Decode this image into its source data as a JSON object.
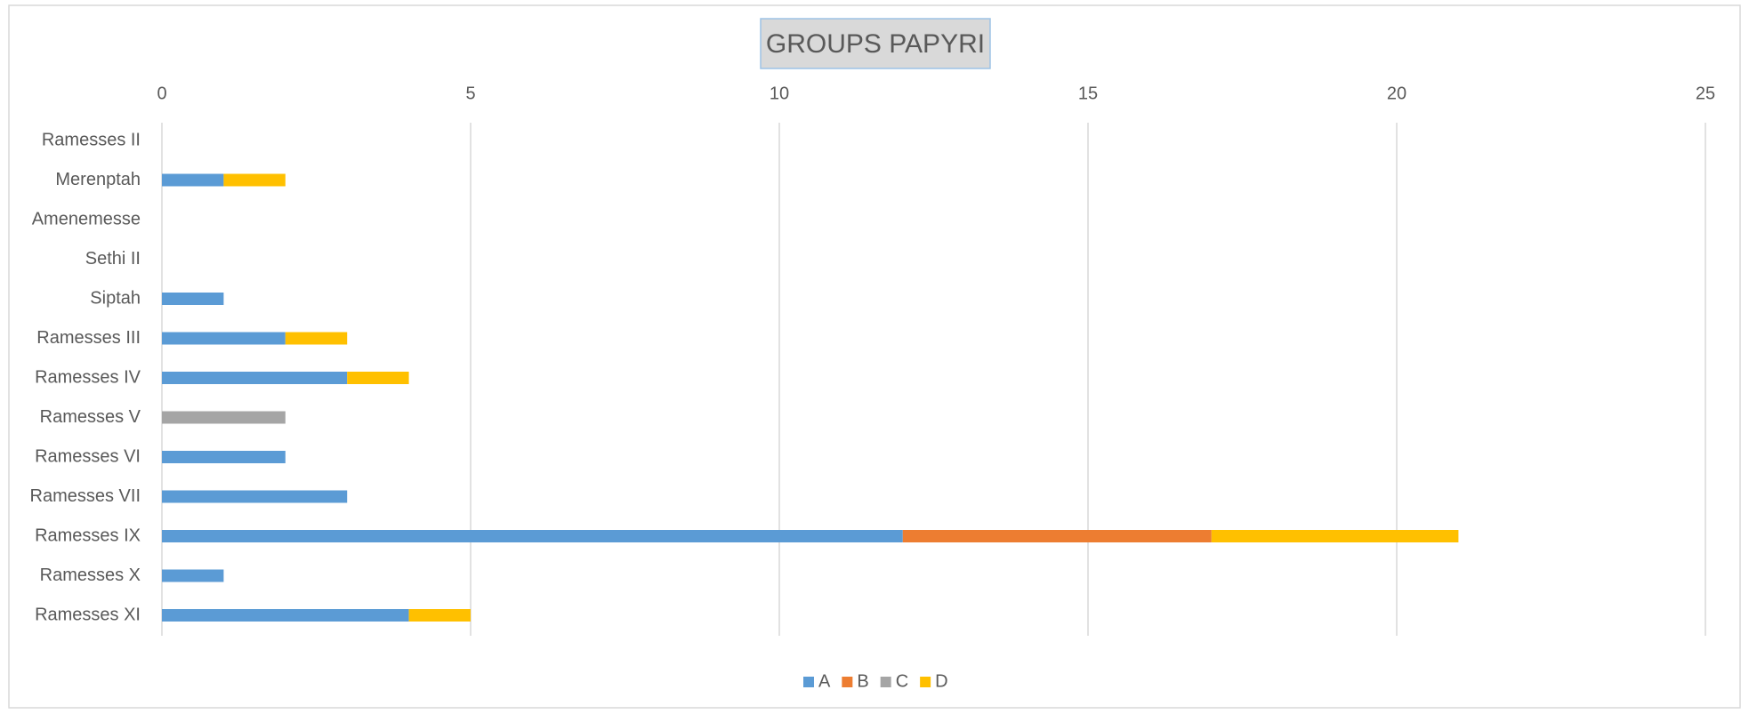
{
  "chart_data": {
    "type": "bar",
    "orientation": "horizontal",
    "stacked": true,
    "title": "GROUPS PAPYRI",
    "categories": [
      "Ramesses II",
      "Merenptah",
      "Amenemesse",
      "Sethi II",
      "Siptah",
      "Ramesses III",
      "Ramesses IV",
      "Ramesses V",
      "Ramesses VI",
      "Ramesses VII",
      "Ramesses IX",
      "Ramesses X",
      "Ramesses XI"
    ],
    "series": [
      {
        "name": "A",
        "color": "#5b9bd5",
        "values": [
          0,
          1,
          0,
          0,
          1,
          2,
          3,
          0,
          2,
          3,
          12,
          1,
          4
        ]
      },
      {
        "name": "B",
        "color": "#ed7d31",
        "values": [
          0,
          0,
          0,
          0,
          0,
          0,
          0,
          0,
          0,
          0,
          5,
          0,
          0
        ]
      },
      {
        "name": "C",
        "color": "#a5a5a5",
        "values": [
          0,
          0,
          0,
          0,
          0,
          0,
          0,
          2,
          0,
          0,
          0,
          0,
          0
        ]
      },
      {
        "name": "D",
        "color": "#ffc000",
        "values": [
          0,
          1,
          0,
          0,
          0,
          1,
          1,
          0,
          0,
          0,
          4,
          0,
          1
        ]
      }
    ],
    "xlim": [
      0,
      25
    ],
    "xticks": [
      0,
      5,
      10,
      15,
      20,
      25
    ],
    "grid": true,
    "legend": "bottom"
  }
}
